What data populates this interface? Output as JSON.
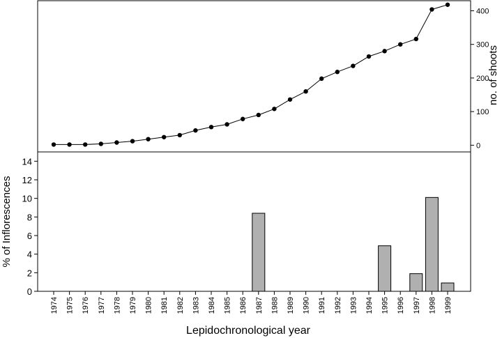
{
  "chart_data": [
    {
      "type": "line",
      "ylabel": "no. of shoots",
      "ylim": [
        -20,
        430
      ],
      "yticks": [
        0,
        100,
        200,
        300,
        400
      ],
      "x": [
        1974,
        1975,
        1976,
        1977,
        1978,
        1979,
        1980,
        1981,
        1982,
        1983,
        1984,
        1985,
        1986,
        1987,
        1988,
        1989,
        1990,
        1991,
        1992,
        1993,
        1994,
        1995,
        1996,
        1997,
        1998,
        1999
      ],
      "values": [
        2,
        2,
        2,
        4,
        8,
        12,
        18,
        24,
        30,
        44,
        54,
        62,
        78,
        90,
        108,
        136,
        160,
        198,
        218,
        236,
        264,
        280,
        300,
        316,
        404,
        418
      ]
    },
    {
      "type": "bar",
      "ylabel": "% of Inflorescences",
      "xlabel": "Lepidochronological year",
      "ylim": [
        0,
        15
      ],
      "yticks": [
        0,
        2,
        4,
        6,
        8,
        10,
        12,
        14
      ],
      "categories": [
        "1974",
        "1975",
        "1976",
        "1977",
        "1978",
        "1979",
        "1980",
        "1981",
        "1982",
        "1983",
        "1984",
        "1985",
        "1986",
        "1987",
        "1988",
        "1989",
        "1990",
        "1991",
        "1992",
        "1993",
        "1994",
        "1995",
        "1996",
        "1997",
        "1998",
        "1999"
      ],
      "values": [
        0,
        0,
        0,
        0,
        0,
        0,
        0,
        0,
        0,
        0,
        0,
        0,
        0,
        8.4,
        0,
        0,
        0,
        0,
        0,
        0,
        0,
        4.9,
        0,
        1.9,
        10.1,
        0.9
      ]
    }
  ]
}
